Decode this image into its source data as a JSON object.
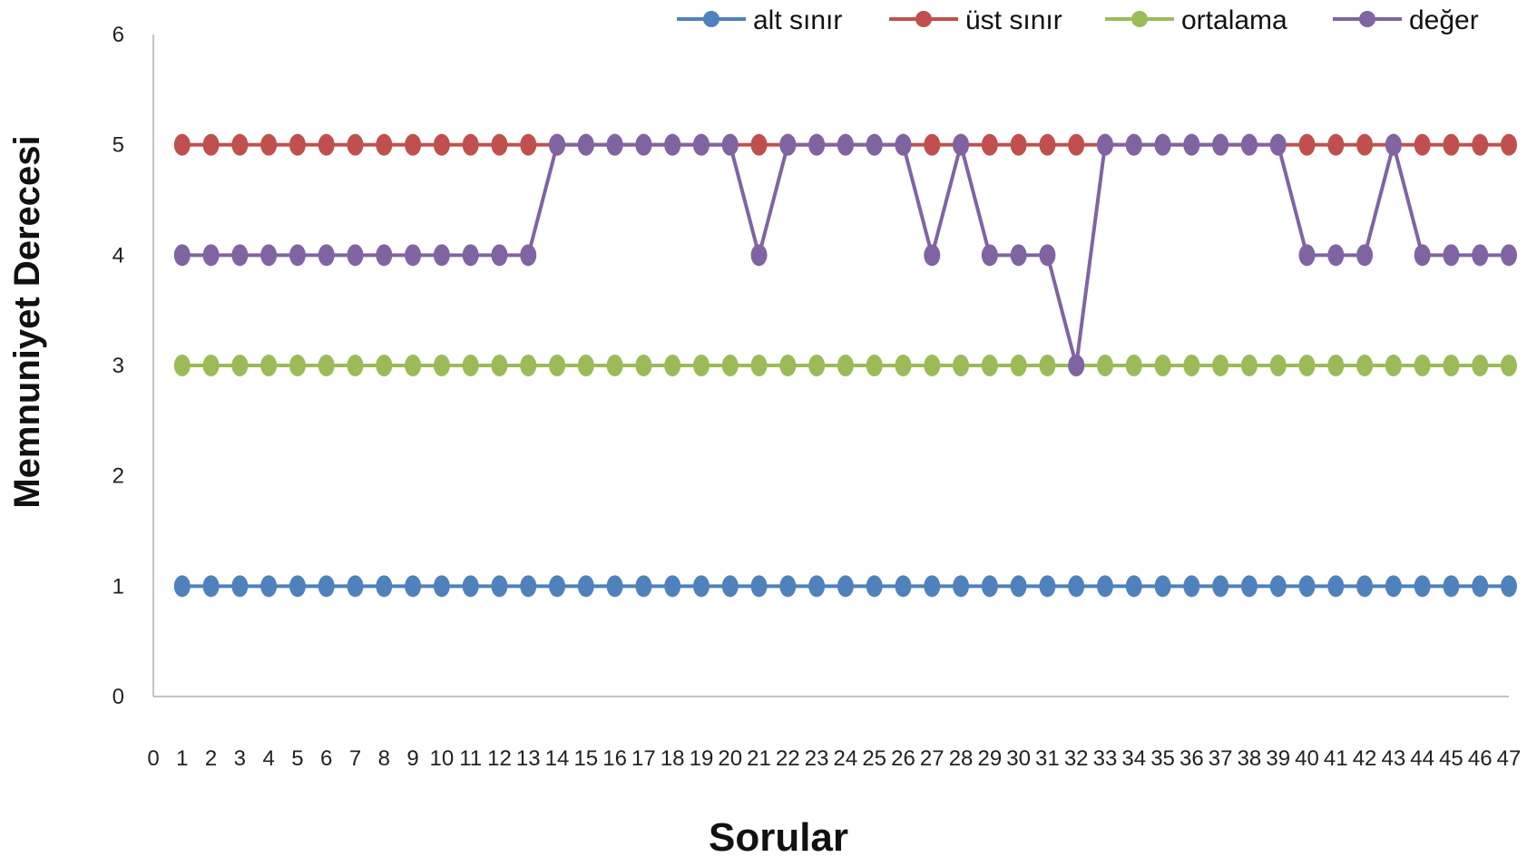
{
  "chart_data": {
    "type": "line",
    "xlabel": "Sorular",
    "ylabel": "Memnuniyet Derecesi",
    "xlim": [
      0,
      47
    ],
    "ylim": [
      0,
      6
    ],
    "xticks": [
      0,
      1,
      2,
      3,
      4,
      5,
      6,
      7,
      8,
      9,
      10,
      11,
      12,
      13,
      14,
      15,
      16,
      17,
      18,
      19,
      20,
      21,
      22,
      23,
      24,
      25,
      26,
      27,
      28,
      29,
      30,
      31,
      32,
      33,
      34,
      35,
      36,
      37,
      38,
      39,
      40,
      41,
      42,
      43,
      44,
      45,
      46,
      47
    ],
    "yticks": [
      0,
      1,
      2,
      3,
      4,
      5,
      6
    ],
    "grid": false,
    "legend_position": "top",
    "x": [
      1,
      2,
      3,
      4,
      5,
      6,
      7,
      8,
      9,
      10,
      11,
      12,
      13,
      14,
      15,
      16,
      17,
      18,
      19,
      20,
      21,
      22,
      23,
      24,
      25,
      26,
      27,
      28,
      29,
      30,
      31,
      32,
      33,
      34,
      35,
      36,
      37,
      38,
      39,
      40,
      41,
      42,
      43,
      44,
      45,
      46,
      47
    ],
    "series": [
      {
        "name": "alt sınır",
        "color": "#4F81BD",
        "values": [
          1,
          1,
          1,
          1,
          1,
          1,
          1,
          1,
          1,
          1,
          1,
          1,
          1,
          1,
          1,
          1,
          1,
          1,
          1,
          1,
          1,
          1,
          1,
          1,
          1,
          1,
          1,
          1,
          1,
          1,
          1,
          1,
          1,
          1,
          1,
          1,
          1,
          1,
          1,
          1,
          1,
          1,
          1,
          1,
          1,
          1,
          1
        ]
      },
      {
        "name": "üst sınır",
        "color": "#C0504D",
        "values": [
          5,
          5,
          5,
          5,
          5,
          5,
          5,
          5,
          5,
          5,
          5,
          5,
          5,
          5,
          5,
          5,
          5,
          5,
          5,
          5,
          5,
          5,
          5,
          5,
          5,
          5,
          5,
          5,
          5,
          5,
          5,
          5,
          5,
          5,
          5,
          5,
          5,
          5,
          5,
          5,
          5,
          5,
          5,
          5,
          5,
          5,
          5
        ]
      },
      {
        "name": "ortalama",
        "color": "#9BBB59",
        "values": [
          3,
          3,
          3,
          3,
          3,
          3,
          3,
          3,
          3,
          3,
          3,
          3,
          3,
          3,
          3,
          3,
          3,
          3,
          3,
          3,
          3,
          3,
          3,
          3,
          3,
          3,
          3,
          3,
          3,
          3,
          3,
          3,
          3,
          3,
          3,
          3,
          3,
          3,
          3,
          3,
          3,
          3,
          3,
          3,
          3,
          3,
          3
        ]
      },
      {
        "name": "değer",
        "color": "#8064A2",
        "values": [
          4,
          4,
          4,
          4,
          4,
          4,
          4,
          4,
          4,
          4,
          4,
          4,
          4,
          5,
          5,
          5,
          5,
          5,
          5,
          5,
          4,
          5,
          5,
          5,
          5,
          5,
          4,
          5,
          4,
          4,
          4,
          3,
          5,
          5,
          5,
          5,
          5,
          5,
          5,
          4,
          4,
          4,
          5,
          4,
          4,
          4,
          4
        ]
      }
    ]
  }
}
